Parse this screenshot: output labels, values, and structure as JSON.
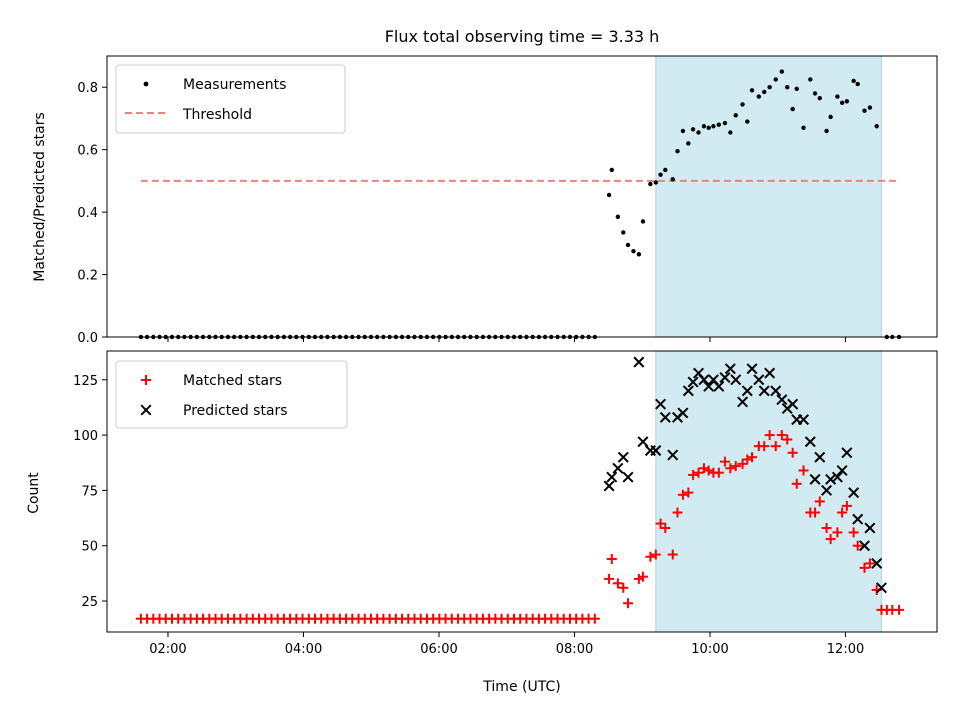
{
  "chart_data": {
    "type": "scatter",
    "title": "Flux total observing time = 3.33 h",
    "xlabel": "Time (UTC)",
    "x_unit": "hours (UTC)",
    "xlim": [
      1.1,
      13.35
    ],
    "x_ticks": [
      {
        "value": 2,
        "label": "02:00"
      },
      {
        "value": 4,
        "label": "04:00"
      },
      {
        "value": 6,
        "label": "06:00"
      },
      {
        "value": 8,
        "label": "08:00"
      },
      {
        "value": 10,
        "label": "10:00"
      },
      {
        "value": 12,
        "label": "12:00"
      }
    ],
    "shaded_span": {
      "x_start": 9.2,
      "x_end": 12.53,
      "color": "#add8e6"
    },
    "top_panel": {
      "ylabel": "Matched/Predicted stars",
      "ylim": [
        0,
        0.9
      ],
      "y_ticks": [
        {
          "value": 0.0,
          "label": "0.0"
        },
        {
          "value": 0.2,
          "label": "0.2"
        },
        {
          "value": 0.4,
          "label": "0.4"
        },
        {
          "value": 0.6,
          "label": "0.6"
        },
        {
          "value": 0.8,
          "label": "0.8"
        }
      ],
      "legend": [
        {
          "label": "Measurements",
          "marker": "dot",
          "color": "#000000"
        },
        {
          "label": "Threshold",
          "marker": "dashed-line",
          "color": "#f08080"
        }
      ],
      "threshold": {
        "value": 0.5,
        "x_start": 1.6,
        "x_end": 12.8,
        "color": "#f08080"
      },
      "zero_run": {
        "x_start": 1.6,
        "x_end": 8.3,
        "count": 74,
        "value": 0.0
      },
      "measurements": [
        [
          8.51,
          0.455
        ],
        [
          8.55,
          0.535
        ],
        [
          8.64,
          0.385
        ],
        [
          8.72,
          0.335
        ],
        [
          8.79,
          0.295
        ],
        [
          8.87,
          0.275
        ],
        [
          8.95,
          0.265
        ],
        [
          9.01,
          0.37
        ],
        [
          9.12,
          0.49
        ],
        [
          9.2,
          0.495
        ],
        [
          9.27,
          0.52
        ],
        [
          9.34,
          0.535
        ],
        [
          9.45,
          0.505
        ],
        [
          9.52,
          0.595
        ],
        [
          9.6,
          0.66
        ],
        [
          9.68,
          0.62
        ],
        [
          9.75,
          0.665
        ],
        [
          9.83,
          0.655
        ],
        [
          9.91,
          0.675
        ],
        [
          9.98,
          0.67
        ],
        [
          10.05,
          0.675
        ],
        [
          10.13,
          0.68
        ],
        [
          10.22,
          0.685
        ],
        [
          10.3,
          0.655
        ],
        [
          10.38,
          0.71
        ],
        [
          10.48,
          0.745
        ],
        [
          10.55,
          0.69
        ],
        [
          10.62,
          0.79
        ],
        [
          10.72,
          0.77
        ],
        [
          10.8,
          0.785
        ],
        [
          10.88,
          0.8
        ],
        [
          10.97,
          0.825
        ],
        [
          11.06,
          0.85
        ],
        [
          11.14,
          0.8
        ],
        [
          11.22,
          0.73
        ],
        [
          11.28,
          0.795
        ],
        [
          11.38,
          0.67
        ],
        [
          11.48,
          0.825
        ],
        [
          11.55,
          0.78
        ],
        [
          11.62,
          0.765
        ],
        [
          11.72,
          0.66
        ],
        [
          11.78,
          0.705
        ],
        [
          11.88,
          0.77
        ],
        [
          11.95,
          0.75
        ],
        [
          12.02,
          0.755
        ],
        [
          12.12,
          0.82
        ],
        [
          12.18,
          0.81
        ],
        [
          12.28,
          0.725
        ],
        [
          12.36,
          0.735
        ],
        [
          12.46,
          0.675
        ],
        [
          12.61,
          0.0
        ],
        [
          12.69,
          0.0
        ],
        [
          12.79,
          0.0
        ]
      ]
    },
    "bottom_panel": {
      "ylabel": "Count",
      "ylim": [
        11,
        138
      ],
      "y_ticks": [
        {
          "value": 25,
          "label": "25"
        },
        {
          "value": 50,
          "label": "50"
        },
        {
          "value": 75,
          "label": "75"
        },
        {
          "value": 100,
          "label": "100"
        },
        {
          "value": 125,
          "label": "125"
        }
      ],
      "legend": [
        {
          "label": "Matched stars",
          "marker": "plus",
          "color": "#ff0000"
        },
        {
          "label": "Predicted stars",
          "marker": "x",
          "color": "#000000"
        }
      ],
      "matched_baseline": {
        "x_start": 1.6,
        "x_end": 8.3,
        "count": 74,
        "value": 17
      },
      "series": [
        {
          "name": "Matched stars",
          "marker": "plus",
          "color": "#ff0000",
          "points": [
            [
              8.51,
              35
            ],
            [
              8.55,
              44
            ],
            [
              8.64,
              33
            ],
            [
              8.72,
              31
            ],
            [
              8.79,
              24
            ],
            [
              8.95,
              35
            ],
            [
              9.01,
              36
            ],
            [
              9.12,
              45
            ],
            [
              9.2,
              46
            ],
            [
              9.27,
              60
            ],
            [
              9.34,
              58
            ],
            [
              9.45,
              46
            ],
            [
              9.52,
              65
            ],
            [
              9.6,
              73
            ],
            [
              9.68,
              74
            ],
            [
              9.75,
              82
            ],
            [
              9.83,
              83
            ],
            [
              9.91,
              85
            ],
            [
              9.98,
              84
            ],
            [
              10.05,
              83
            ],
            [
              10.13,
              83
            ],
            [
              10.22,
              88
            ],
            [
              10.3,
              85
            ],
            [
              10.38,
              86
            ],
            [
              10.48,
              87
            ],
            [
              10.55,
              89
            ],
            [
              10.62,
              90
            ],
            [
              10.72,
              95
            ],
            [
              10.8,
              95
            ],
            [
              10.88,
              100
            ],
            [
              10.97,
              95
            ],
            [
              11.06,
              100
            ],
            [
              11.14,
              98
            ],
            [
              11.22,
              92
            ],
            [
              11.28,
              78
            ],
            [
              11.38,
              84
            ],
            [
              11.48,
              65
            ],
            [
              11.55,
              65
            ],
            [
              11.62,
              70
            ],
            [
              11.72,
              58
            ],
            [
              11.78,
              53
            ],
            [
              11.88,
              56
            ],
            [
              11.95,
              65
            ],
            [
              12.02,
              68
            ],
            [
              12.12,
              56
            ],
            [
              12.18,
              50
            ],
            [
              12.28,
              40
            ],
            [
              12.36,
              42
            ],
            [
              12.46,
              30
            ],
            [
              12.53,
              21
            ],
            [
              12.61,
              21
            ],
            [
              12.69,
              21
            ],
            [
              12.79,
              21
            ]
          ]
        },
        {
          "name": "Predicted stars",
          "marker": "x",
          "color": "#000000",
          "points": [
            [
              8.51,
              77
            ],
            [
              8.55,
              81
            ],
            [
              8.64,
              85
            ],
            [
              8.72,
              90
            ],
            [
              8.79,
              81
            ],
            [
              8.95,
              133
            ],
            [
              9.01,
              97
            ],
            [
              9.12,
              93
            ],
            [
              9.2,
              93
            ],
            [
              9.27,
              114
            ],
            [
              9.34,
              108
            ],
            [
              9.45,
              91
            ],
            [
              9.52,
              108
            ],
            [
              9.6,
              110
            ],
            [
              9.68,
              120
            ],
            [
              9.75,
              124
            ],
            [
              9.83,
              128
            ],
            [
              9.91,
              125
            ],
            [
              9.98,
              122
            ],
            [
              10.05,
              125
            ],
            [
              10.13,
              122
            ],
            [
              10.22,
              126
            ],
            [
              10.3,
              130
            ],
            [
              10.38,
              125
            ],
            [
              10.48,
              115
            ],
            [
              10.55,
              120
            ],
            [
              10.62,
              130
            ],
            [
              10.72,
              125
            ],
            [
              10.8,
              120
            ],
            [
              10.88,
              128
            ],
            [
              10.97,
              120
            ],
            [
              11.06,
              116
            ],
            [
              11.14,
              112
            ],
            [
              11.22,
              114
            ],
            [
              11.28,
              107
            ],
            [
              11.38,
              107
            ],
            [
              11.48,
              97
            ],
            [
              11.55,
              80
            ],
            [
              11.62,
              90
            ],
            [
              11.72,
              75
            ],
            [
              11.78,
              80
            ],
            [
              11.88,
              81
            ],
            [
              11.95,
              84
            ],
            [
              12.02,
              92
            ],
            [
              12.12,
              74
            ],
            [
              12.18,
              62
            ],
            [
              12.28,
              50
            ],
            [
              12.36,
              58
            ],
            [
              12.46,
              42
            ],
            [
              12.53,
              31
            ]
          ]
        }
      ]
    }
  }
}
